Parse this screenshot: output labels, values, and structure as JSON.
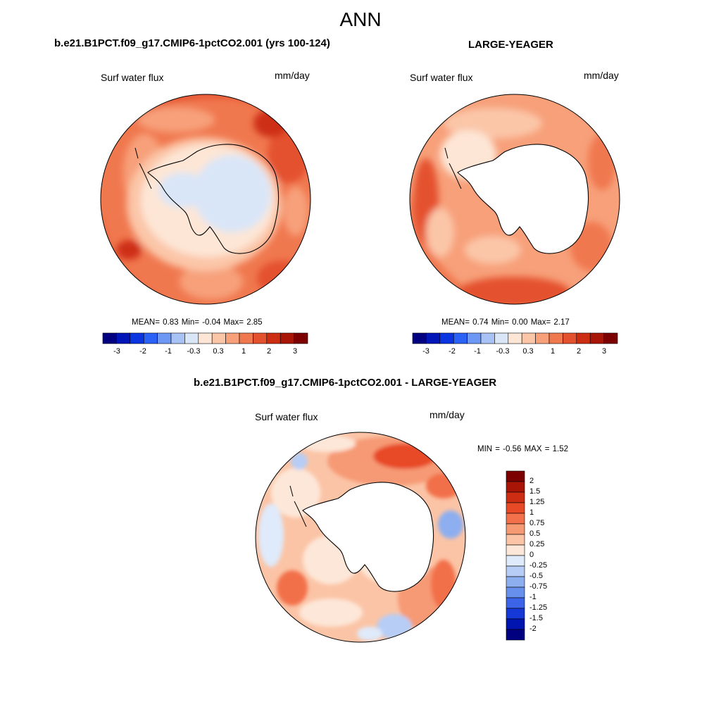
{
  "title": "ANN",
  "panels": [
    {
      "title": "b.e21.B1PCT.f09_g17.CMIP6-1pctCO2.001 (yrs 100-124)",
      "variable": "Surf water flux",
      "units": "mm/day",
      "stats": "MEAN=   0.83  Min=  -0.04  Max=   2.85",
      "colorbar_ticks": [
        "-3",
        "-2",
        "-1",
        "-0.3",
        "0.3",
        "1",
        "2",
        "3"
      ]
    },
    {
      "title": "LARGE-YEAGER",
      "variable": "Surf water flux",
      "units": "mm/day",
      "stats": "MEAN=   0.74  Min=   0.00  Max=   2.17",
      "colorbar_ticks": [
        "-3",
        "-2",
        "-1",
        "-0.3",
        "0.3",
        "1",
        "2",
        "3"
      ]
    },
    {
      "title": "b.e21.B1PCT.f09_g17.CMIP6-1pctCO2.001 - LARGE-YEAGER",
      "variable": "Surf water flux",
      "units": "mm/day",
      "stats": "MIN =  -0.56 MAX =   1.52",
      "colorbar_ticks": [
        "2",
        "1.5",
        "1.25",
        "1",
        "0.75",
        "0.5",
        "0.25",
        "0",
        "-0.25",
        "-0.5",
        "-0.75",
        "-1",
        "-1.25",
        "-1.5",
        "-2"
      ]
    }
  ],
  "colors": {
    "abs_scale": [
      "#000080",
      "#0015b8",
      "#0a35e0",
      "#2b62f5",
      "#6d97f5",
      "#a8c2f5",
      "#d9e6f8",
      "#fde6d6",
      "#fbc6a8",
      "#f7a07a",
      "#f0784f",
      "#e4512e",
      "#cd2e13",
      "#a91608",
      "#7d0000"
    ],
    "diff_scale": [
      "#7d0000",
      "#a91608",
      "#cd2e13",
      "#e84a28",
      "#f2704a",
      "#f69a74",
      "#fbc4a6",
      "#fde7d8",
      "#dfeafa",
      "#b7cdf5",
      "#8dafef",
      "#6690ec",
      "#3b64e8",
      "#1638d6",
      "#0015b0",
      "#000080"
    ],
    "land": "#ffffff",
    "coast": "#000000"
  }
}
